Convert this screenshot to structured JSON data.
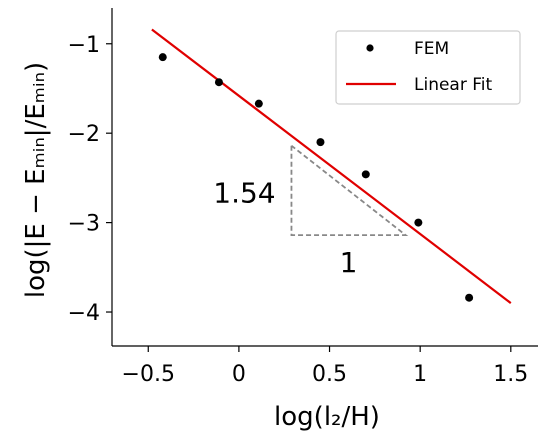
{
  "chart_data": {
    "type": "scatter",
    "xlabel": "log(l₂/H)",
    "ylabel": "log(|E − Eₘᵢₙ|/Eₘᵢₙ)",
    "xlim": [
      -0.7,
      1.65
    ],
    "ylim": [
      -4.38,
      -0.6
    ],
    "xticks": [
      -0.5,
      0,
      0.5,
      1,
      1.5
    ],
    "xtick_labels": [
      "−0.5",
      "0",
      "0.5",
      "1",
      "1.5"
    ],
    "yticks": [
      -1,
      -2,
      -3,
      -4
    ],
    "ytick_labels": [
      "−1",
      "−2",
      "−3",
      "−4"
    ],
    "grid": false,
    "legend": {
      "position": "top-right",
      "entries": [
        "FEM",
        "Linear Fit"
      ]
    },
    "series": [
      {
        "name": "FEM",
        "kind": "scatter",
        "color": "#000000",
        "points": [
          {
            "x": -0.42,
            "y": -1.15
          },
          {
            "x": -0.11,
            "y": -1.43
          },
          {
            "x": 0.11,
            "y": -1.67
          },
          {
            "x": 0.45,
            "y": -2.1
          },
          {
            "x": 0.7,
            "y": -2.46
          },
          {
            "x": 0.99,
            "y": -3.0
          },
          {
            "x": 1.27,
            "y": -3.84
          }
        ]
      },
      {
        "name": "Linear Fit",
        "kind": "line",
        "color": "#e00000",
        "points": [
          {
            "x": -0.48,
            "y": -0.84
          },
          {
            "x": 1.5,
            "y": -3.9
          }
        ]
      }
    ],
    "slope_triangle": {
      "color": "#888888",
      "slope_label": "1.54",
      "run_label": "1",
      "points": [
        {
          "x": 0.29,
          "y": -2.14
        },
        {
          "x": 0.29,
          "y": -3.14
        },
        {
          "x": 0.92,
          "y": -3.14
        }
      ]
    }
  }
}
